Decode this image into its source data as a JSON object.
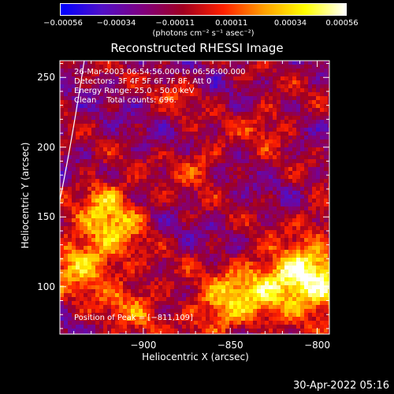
{
  "chart_data": {
    "type": "heatmap",
    "title": "Reconstructed RHESSI Image",
    "xlabel": "Heliocentric X (arcsec)",
    "ylabel": "Heliocentric Y (arcsec)",
    "xlim": [
      -948,
      -793
    ],
    "ylim": [
      66,
      262
    ],
    "xticks": [
      -900,
      -850,
      -800
    ],
    "xtick_labels": [
      "−900",
      "−850",
      "−800"
    ],
    "yticks": [
      100,
      150,
      200,
      250
    ],
    "ytick_labels": [
      "100",
      "150",
      "200",
      "250"
    ],
    "colorbar": {
      "range": [
        -0.00056,
        0.00056
      ],
      "ticks": [
        -0.00056,
        -0.00034,
        -0.00011,
        0.00011,
        0.00034,
        0.00056
      ],
      "tick_labels": [
        "−0.00056",
        "−0.00034",
        "−0.00011",
        "0.00011",
        "0.00034",
        "0.00056"
      ],
      "units": "(photons cm⁻² s⁻¹ asec⁻²)",
      "colors": [
        "#0000ff",
        "#5010c8",
        "#800080",
        "#a00020",
        "#ff2000",
        "#ffa000",
        "#ffff00",
        "#ffffff"
      ]
    },
    "annotations": [
      "26-Mar-2003 06:54:56.000 to 06:56:00.000",
      "Detectors: 3F 4F 5F 6F 7F 8F, Att 0",
      "Energy Range: 25.0 - 50.0 keV",
      "Clean    Total counts: 696.",
      "Position of Peak = [−811,109]"
    ],
    "peak": {
      "x": -811,
      "y": 109
    },
    "limb_arc": [
      [
        -948,
        162
      ],
      [
        -941,
        205
      ],
      [
        -934,
        262
      ]
    ],
    "grid": false
  },
  "footer": {
    "date": "30-Apr-2022 05:16"
  }
}
